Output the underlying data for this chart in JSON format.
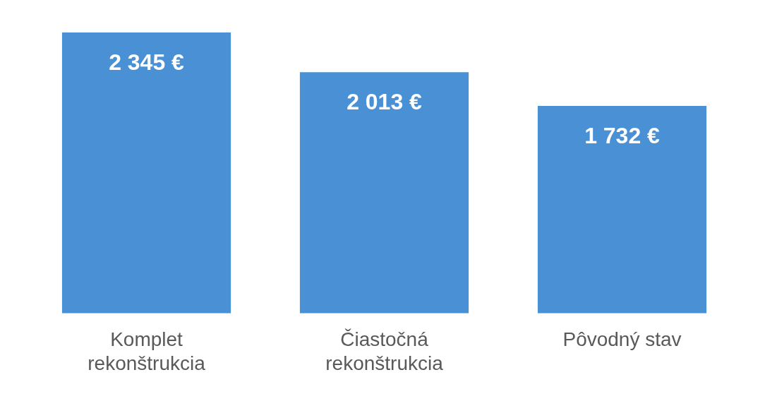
{
  "chart_data": {
    "type": "bar",
    "categories": [
      "Komplet rekonštrukcia",
      "Čiastočná rekonštrukcia",
      "Pôvodný stav"
    ],
    "values": [
      2345,
      2013,
      1732
    ],
    "value_labels": [
      "2 345 €",
      "2 013 €",
      "1 732 €"
    ],
    "color": "#4a90d4",
    "grid": false,
    "legend": false
  }
}
